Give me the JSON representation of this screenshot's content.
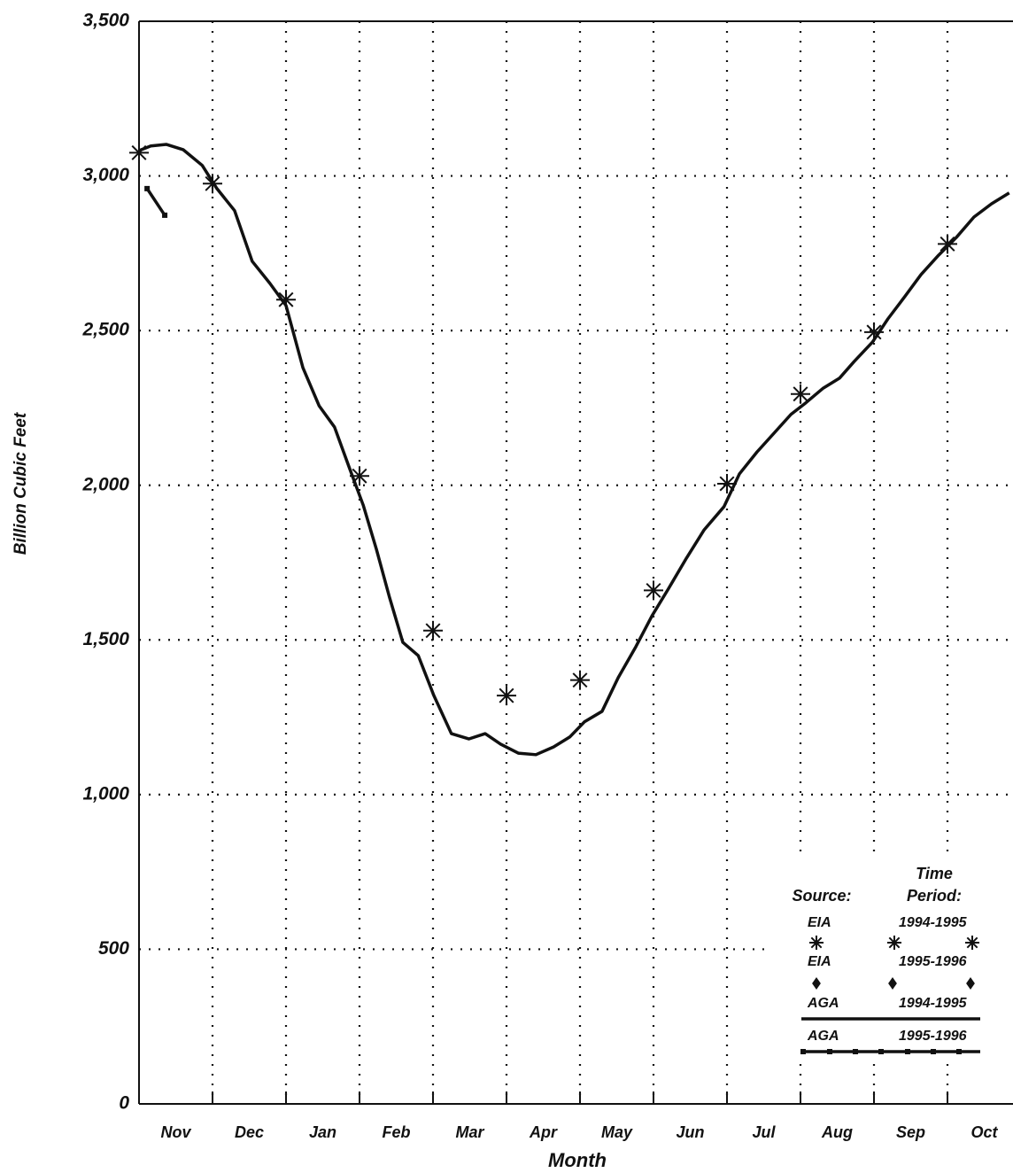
{
  "chart_data": {
    "type": "line",
    "y_label": "Billion Cubic Feet",
    "x_label": "Month",
    "categories": [
      "Nov",
      "Dec",
      "Jan",
      "Feb",
      "Mar",
      "Apr",
      "May",
      "Jun",
      "Jul",
      "Aug",
      "Sep",
      "Oct"
    ],
    "xlim": [
      0,
      12
    ],
    "ylim": [
      0,
      3500
    ],
    "yticks": [
      0,
      500,
      {
        "value": 1000,
        "label": "1,000"
      },
      {
        "value": 1500,
        "label": "1,500"
      },
      {
        "value": 2000,
        "label": "2,000"
      },
      {
        "value": 2500,
        "label": "2,500"
      },
      {
        "value": 3000,
        "label": "3,000"
      },
      {
        "value": 3500,
        "label": "3,500"
      }
    ],
    "grid": true,
    "legend": {
      "source_label": "Source:",
      "period_label": [
        "Time",
        "Period:"
      ]
    },
    "series": [
      {
        "source": "EIA",
        "period": "1994-1995",
        "marker": "asterisk",
        "color": "#111111",
        "x": [
          0,
          1,
          2,
          3,
          4,
          5,
          6,
          7,
          8,
          9,
          10,
          11
        ],
        "values": [
          3075,
          2975,
          2600,
          2030,
          1530,
          1320,
          1370,
          1660,
          2005,
          2295,
          2495,
          2780
        ]
      },
      {
        "source": "EIA",
        "period": "1995-1996",
        "marker": "diamond",
        "color": "#111111",
        "x": [],
        "values": []
      },
      {
        "source": "AGA",
        "period": "1994-1995",
        "marker": "line",
        "color": "#111111",
        "x": [
          0,
          0.16,
          0.37,
          0.6,
          0.86,
          1.06,
          1.3,
          1.54,
          1.78,
          2,
          2.23,
          2.45,
          2.66,
          2.87,
          3.05,
          3.23,
          3.41,
          3.59,
          3.8,
          4.01,
          4.25,
          4.49,
          4.71,
          4.92,
          5.16,
          5.4,
          5.64,
          5.86,
          6.06,
          6.3,
          6.52,
          6.76,
          6.98,
          7.2,
          7.45,
          7.69,
          7.96,
          8.17,
          8.41,
          8.65,
          8.87,
          9.07,
          9.31,
          9.53,
          9.73,
          9.98,
          10.19,
          10.42,
          10.64,
          10.88,
          11.12,
          11.36,
          11.6,
          11.84
        ],
        "values": [
          3082,
          3097,
          3102,
          3085,
          3034,
          2959,
          2888,
          2724,
          2653,
          2581,
          2380,
          2257,
          2188,
          2051,
          1936,
          1793,
          1636,
          1492,
          1449,
          1321,
          1197,
          1180,
          1197,
          1163,
          1134,
          1129,
          1154,
          1186,
          1235,
          1269,
          1378,
          1478,
          1578,
          1664,
          1765,
          1856,
          1931,
          2037,
          2108,
          2171,
          2229,
          2266,
          2314,
          2346,
          2400,
          2463,
          2538,
          2610,
          2681,
          2744,
          2801,
          2867,
          2910,
          2945
        ]
      },
      {
        "source": "AGA",
        "period": "1995-1996",
        "marker": "square-line",
        "color": "#111111",
        "x": [
          0.11,
          0.35
        ],
        "values": [
          2959,
          2873
        ]
      }
    ]
  }
}
